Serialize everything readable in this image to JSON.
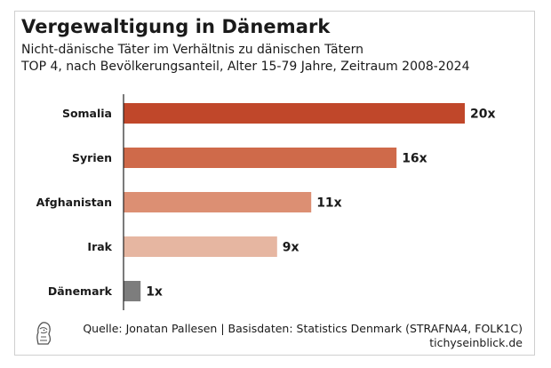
{
  "chart_data": {
    "type": "bar",
    "orientation": "horizontal",
    "title": "Vergewaltigung in Dänemark",
    "subtitle_lines": [
      "Nicht-dänische Täter im Verhältnis zu dänischen Tätern",
      "TOP 4, nach Bevölkerungsanteil, Alter 15-79 Jahre, Zeitraum 2008-2024"
    ],
    "categories": [
      "Somalia",
      "Syrien",
      "Afghanistan",
      "Irak",
      "Dänemark"
    ],
    "values": [
      20,
      16,
      11,
      9,
      1
    ],
    "value_labels": [
      "20x",
      "16x",
      "11x",
      "9x",
      "1x"
    ],
    "colors": [
      "#c0472a",
      "#cf6a4a",
      "#dc8f73",
      "#e6b6a1",
      "#7d7d7d"
    ],
    "xlim": [
      0,
      20
    ],
    "grid": false
  },
  "footer": {
    "source": "Quelle: Jonatan Pallesen | Basisdaten: Statistics Denmark (STRAFNA4, FOLK1C)",
    "site": "tichyseinblick.de",
    "logo_icon": "publisher-logo-icon"
  }
}
